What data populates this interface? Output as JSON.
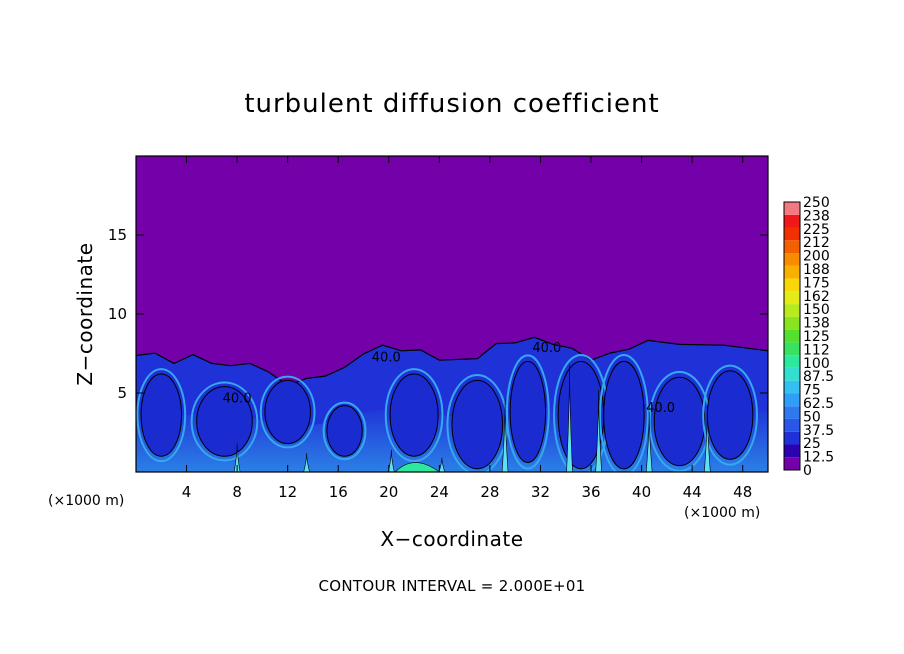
{
  "chart_data": {
    "type": "heatmap",
    "title": "turbulent diffusion coefficient",
    "xlabel": "X−coordinate",
    "ylabel": "Z−coordinate",
    "x_unit_left": "(×1000 m)",
    "x_unit_right": "(×1000 m)",
    "footer": "CONTOUR INTERVAL = 2.000E+01",
    "xlim": [
      0,
      50
    ],
    "ylim": [
      0,
      20
    ],
    "x_ticks": [
      "4",
      "8",
      "12",
      "16",
      "20",
      "24",
      "28",
      "32",
      "36",
      "40",
      "44",
      "48"
    ],
    "x_tick_values": [
      4,
      8,
      12,
      16,
      20,
      24,
      28,
      32,
      36,
      40,
      44,
      48
    ],
    "y_ticks": [
      "5",
      "10",
      "15"
    ],
    "y_tick_values": [
      5,
      10,
      15
    ],
    "colorbar_labels": [
      "0",
      "12.5",
      "25",
      "37.5",
      "50",
      "62.5",
      "75",
      "87.5",
      "100",
      "112",
      "125",
      "138",
      "150",
      "162",
      "175",
      "188",
      "200",
      "212",
      "225",
      "238",
      "250"
    ],
    "colorbar_colors": [
      "#7300a8",
      "#2d00b0",
      "#1f32d8",
      "#2b57e8",
      "#2f79f0",
      "#2f9ef6",
      "#35c0f2",
      "#33e0d0",
      "#2ee8a0",
      "#3ae060",
      "#55e030",
      "#88e41e",
      "#b8ea1e",
      "#e4ec18",
      "#f8d808",
      "#f8b000",
      "#f88c00",
      "#f46000",
      "#f03000",
      "#f01818",
      "#f47a82"
    ],
    "contour_labels": [
      {
        "text": "40.0",
        "x": 19.8,
        "z": 7.0
      },
      {
        "text": "40.0",
        "x": 32.5,
        "z": 7.6
      },
      {
        "text": "40.0",
        "x": 8.0,
        "z": 4.4
      },
      {
        "text": "40.0",
        "x": 41.5,
        "z": 3.8
      }
    ],
    "field": {
      "background_value": 0,
      "turbulent_layer_top_z": [
        7.5,
        7.4,
        7.0,
        7.3,
        7.0,
        6.6,
        7.0,
        6.2,
        5.6,
        5.8,
        6.2,
        6.5,
        7.6,
        7.9,
        7.8,
        7.6,
        7.2,
        7.0,
        7.3,
        8.0,
        8.3,
        8.4,
        8.2,
        7.7,
        7.2,
        7.4,
        7.9,
        8.2,
        8.2,
        7.9,
        7.8
      ],
      "turbulent_layer_top_x": [
        0,
        1.5,
        3,
        4.5,
        6,
        7.5,
        9,
        10.5,
        12,
        13.5,
        15,
        16.5,
        18,
        19.5,
        21,
        22.5,
        24,
        25.5,
        27,
        28.5,
        30,
        31.5,
        33,
        34.5,
        36,
        37.5,
        39,
        40.5,
        43,
        46.5,
        50
      ]
    }
  }
}
